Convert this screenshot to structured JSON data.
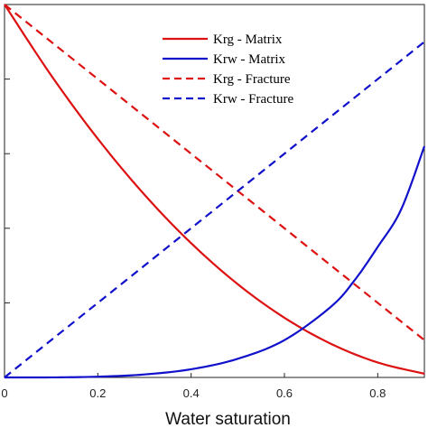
{
  "chart_data": {
    "type": "line",
    "title": "",
    "xlabel": "Water saturation",
    "ylabel": "",
    "xlim": [
      0,
      0.9
    ],
    "ylim": [
      0,
      1
    ],
    "x_ticks": [
      0,
      0.2,
      0.4,
      0.6,
      0.8
    ],
    "x_tick_labels": [
      "0",
      "0.2",
      "0.4",
      "0.6",
      "0.8"
    ],
    "y_ticks": [
      0,
      0.2,
      0.4,
      0.6,
      0.8,
      1.0
    ],
    "grid": false,
    "legend_position": "top-center",
    "series": [
      {
        "name": "Krg - Matrix",
        "color": "#dd1111",
        "dash": "solid",
        "x": [
          0,
          0.1,
          0.2,
          0.3,
          0.4,
          0.5,
          0.6,
          0.7,
          0.8,
          0.9
        ],
        "y": [
          1.0,
          0.81,
          0.64,
          0.49,
          0.36,
          0.25,
          0.16,
          0.09,
          0.04,
          0.01
        ]
      },
      {
        "name": "Krw - Matrix",
        "color": "#1111cc",
        "dash": "solid",
        "x": [
          0,
          0.1,
          0.2,
          0.3,
          0.4,
          0.5,
          0.6,
          0.7,
          0.75,
          0.8,
          0.85,
          0.9
        ],
        "y": [
          0,
          0.0001,
          0.002,
          0.008,
          0.022,
          0.05,
          0.1,
          0.19,
          0.26,
          0.35,
          0.45,
          0.62
        ]
      },
      {
        "name": "Krg - Fracture",
        "color": "#dd1111",
        "dash": "dashed",
        "x": [
          0,
          0.9
        ],
        "y": [
          1.0,
          0.1
        ]
      },
      {
        "name": "Krw - Fracture",
        "color": "#1111cc",
        "dash": "dashed",
        "x": [
          0,
          0.9
        ],
        "y": [
          0,
          0.9
        ]
      }
    ]
  }
}
